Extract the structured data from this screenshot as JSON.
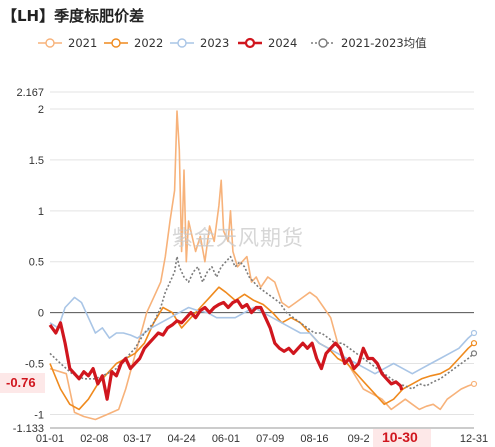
{
  "header": {
    "title": "【LH】季度标肥价差"
  },
  "watermark": "紫金天风期货",
  "badges": {
    "last_value": "-0.76",
    "last_date": "10-30"
  },
  "chart_data": {
    "type": "line",
    "title": "【LH】季度标肥价差",
    "xlabel": "",
    "ylabel": "",
    "ylim": [
      -1.133,
      2.167
    ],
    "yticks": [
      2.167,
      2,
      1.5,
      1,
      0.5,
      0,
      -0.5,
      -1,
      -1.133
    ],
    "ytick_labels": [
      "2.167",
      "2",
      "1.5",
      "1",
      "0.5",
      "0",
      "-0.5",
      "-1",
      "-1.133"
    ],
    "xtick_labels": [
      "01-01",
      "02-08",
      "03-17",
      "04-24",
      "06-01",
      "07-09",
      "08-16",
      "09-2",
      "10-30",
      "12-31"
    ],
    "xtick_days": [
      1,
      39,
      76,
      114,
      152,
      190,
      228,
      266,
      303,
      365
    ],
    "grid": true,
    "legend_position": "top",
    "series": [
      {
        "name": "2021",
        "color": "#f7b27a",
        "width": 1.6,
        "marker": true,
        "x": [
          1,
          15,
          22,
          30,
          40,
          50,
          60,
          66,
          72,
          78,
          84,
          90,
          96,
          100,
          104,
          108,
          110,
          112,
          114,
          116,
          118,
          120,
          122,
          126,
          130,
          134,
          138,
          142,
          146,
          148,
          150,
          154,
          156,
          158,
          162,
          166,
          170,
          174,
          178,
          182,
          188,
          194,
          200,
          206,
          212,
          218,
          224,
          230,
          236,
          242,
          248,
          254,
          262,
          270,
          278,
          286,
          294,
          300,
          306,
          312,
          318,
          324,
          330,
          336,
          342,
          348,
          354,
          360,
          365
        ],
        "y": [
          -0.55,
          -0.6,
          -0.98,
          -1.02,
          -1.05,
          -1.0,
          -0.95,
          -0.75,
          -0.5,
          -0.25,
          0.0,
          0.15,
          0.3,
          0.55,
          0.9,
          1.2,
          1.98,
          1.6,
          0.6,
          1.4,
          0.5,
          0.9,
          0.8,
          0.6,
          0.75,
          0.5,
          0.85,
          0.7,
          1.05,
          1.3,
          0.8,
          0.7,
          1.0,
          0.6,
          0.45,
          0.5,
          0.55,
          0.3,
          0.35,
          0.25,
          0.35,
          0.3,
          0.1,
          0.05,
          0.1,
          0.15,
          0.2,
          0.15,
          0.05,
          -0.05,
          -0.3,
          -0.45,
          -0.6,
          -0.75,
          -0.8,
          -0.85,
          -0.95,
          -0.9,
          -0.85,
          -0.9,
          -0.95,
          -0.92,
          -0.9,
          -0.95,
          -0.85,
          -0.8,
          -0.75,
          -0.72,
          -0.7
        ]
      },
      {
        "name": "2022",
        "color": "#ef8a1e",
        "width": 1.6,
        "marker": true,
        "x": [
          1,
          10,
          18,
          26,
          34,
          42,
          50,
          58,
          66,
          74,
          82,
          90,
          98,
          106,
          114,
          122,
          130,
          138,
          146,
          152,
          160,
          168,
          176,
          184,
          192,
          200,
          208,
          216,
          224,
          232,
          240,
          248,
          256,
          264,
          272,
          280,
          288,
          296,
          304,
          312,
          320,
          328,
          336,
          344,
          352,
          360,
          365
        ],
        "y": [
          -0.5,
          -0.75,
          -0.9,
          -0.95,
          -0.85,
          -0.7,
          -0.6,
          -0.5,
          -0.45,
          -0.4,
          -0.3,
          -0.1,
          0.05,
          0.0,
          -0.15,
          -0.05,
          0.05,
          0.15,
          0.25,
          0.2,
          0.12,
          0.18,
          0.12,
          0.08,
          0.0,
          -0.1,
          -0.05,
          -0.1,
          -0.2,
          -0.3,
          -0.35,
          -0.45,
          -0.5,
          -0.6,
          -0.7,
          -0.8,
          -0.9,
          -0.85,
          -0.75,
          -0.7,
          -0.65,
          -0.62,
          -0.6,
          -0.55,
          -0.45,
          -0.35,
          -0.3
        ]
      },
      {
        "name": "2023",
        "color": "#a9c5e6",
        "width": 1.6,
        "marker": true,
        "x": [
          1,
          8,
          14,
          18,
          22,
          28,
          34,
          40,
          46,
          52,
          58,
          64,
          70,
          76,
          82,
          88,
          96,
          104,
          112,
          120,
          128,
          136,
          144,
          152,
          160,
          168,
          176,
          184,
          192,
          200,
          208,
          216,
          224,
          232,
          240,
          248,
          256,
          264,
          272,
          280,
          288,
          296,
          304,
          312,
          320,
          328,
          336,
          344,
          352,
          360,
          365
        ],
        "y": [
          -0.1,
          -0.15,
          0.05,
          0.1,
          0.15,
          0.1,
          -0.05,
          -0.2,
          -0.15,
          -0.25,
          -0.2,
          -0.2,
          -0.22,
          -0.25,
          -0.2,
          -0.15,
          -0.1,
          -0.05,
          0.0,
          0.05,
          0.02,
          0.0,
          -0.05,
          -0.05,
          -0.05,
          0.0,
          0.05,
          0.0,
          -0.05,
          -0.1,
          -0.15,
          -0.2,
          -0.2,
          -0.3,
          -0.35,
          -0.4,
          -0.45,
          -0.5,
          -0.55,
          -0.6,
          -0.55,
          -0.5,
          -0.55,
          -0.6,
          -0.55,
          -0.5,
          -0.45,
          -0.4,
          -0.35,
          -0.25,
          -0.2
        ]
      },
      {
        "name": "2024",
        "color": "#d0161e",
        "width": 3.2,
        "marker": true,
        "x": [
          1,
          6,
          10,
          14,
          18,
          22,
          26,
          30,
          34,
          38,
          42,
          46,
          50,
          54,
          58,
          62,
          66,
          70,
          74,
          78,
          82,
          86,
          90,
          94,
          98,
          102,
          106,
          110,
          114,
          118,
          122,
          126,
          130,
          134,
          138,
          142,
          146,
          150,
          154,
          158,
          162,
          166,
          170,
          174,
          178,
          182,
          186,
          190,
          194,
          198,
          202,
          206,
          210,
          214,
          218,
          222,
          226,
          230,
          234,
          238,
          242,
          246,
          250,
          254,
          258,
          262,
          266,
          270,
          274,
          278,
          282,
          286,
          290,
          294,
          298,
          302,
          303
        ],
        "y": [
          -0.12,
          -0.2,
          -0.1,
          -0.3,
          -0.55,
          -0.6,
          -0.65,
          -0.58,
          -0.62,
          -0.55,
          -0.7,
          -0.62,
          -0.85,
          -0.58,
          -0.62,
          -0.5,
          -0.45,
          -0.55,
          -0.5,
          -0.45,
          -0.35,
          -0.3,
          -0.25,
          -0.2,
          -0.22,
          -0.15,
          -0.12,
          -0.08,
          -0.1,
          -0.05,
          0.0,
          -0.05,
          0.02,
          0.05,
          0.0,
          0.05,
          0.08,
          0.1,
          0.05,
          0.1,
          0.12,
          0.05,
          0.08,
          0.0,
          0.05,
          0.05,
          -0.05,
          -0.15,
          -0.3,
          -0.35,
          -0.38,
          -0.35,
          -0.4,
          -0.35,
          -0.3,
          -0.35,
          -0.3,
          -0.45,
          -0.55,
          -0.4,
          -0.35,
          -0.3,
          -0.35,
          -0.5,
          -0.45,
          -0.55,
          -0.5,
          -0.35,
          -0.45,
          -0.45,
          -0.5,
          -0.6,
          -0.65,
          -0.7,
          -0.68,
          -0.72,
          -0.76
        ]
      },
      {
        "name": "2021-2023均值",
        "color": "#7b7b7b",
        "width": 1.6,
        "dash": "2,2",
        "marker": true,
        "x": [
          1,
          10,
          20,
          30,
          40,
          50,
          58,
          66,
          74,
          82,
          90,
          96,
          100,
          104,
          108,
          110,
          112,
          116,
          120,
          124,
          128,
          132,
          136,
          140,
          144,
          148,
          152,
          156,
          160,
          164,
          168,
          172,
          176,
          180,
          186,
          192,
          198,
          204,
          210,
          216,
          222,
          228,
          234,
          240,
          246,
          252,
          258,
          264,
          270,
          276,
          282,
          288,
          294,
          300,
          306,
          312,
          318,
          324,
          330,
          336,
          342,
          348,
          354,
          360,
          365
        ],
        "y": [
          -0.4,
          -0.5,
          -0.6,
          -0.65,
          -0.65,
          -0.6,
          -0.55,
          -0.45,
          -0.35,
          -0.2,
          -0.1,
          0.05,
          0.2,
          0.3,
          0.4,
          0.55,
          0.45,
          0.35,
          0.3,
          0.4,
          0.45,
          0.3,
          0.4,
          0.45,
          0.35,
          0.45,
          0.5,
          0.55,
          0.45,
          0.5,
          0.45,
          0.35,
          0.3,
          0.25,
          0.2,
          0.15,
          0.1,
          0.0,
          -0.05,
          -0.1,
          -0.15,
          -0.2,
          -0.2,
          -0.25,
          -0.3,
          -0.3,
          -0.35,
          -0.4,
          -0.45,
          -0.5,
          -0.55,
          -0.6,
          -0.65,
          -0.7,
          -0.72,
          -0.75,
          -0.7,
          -0.72,
          -0.68,
          -0.65,
          -0.6,
          -0.55,
          -0.5,
          -0.45,
          -0.4
        ]
      }
    ]
  }
}
